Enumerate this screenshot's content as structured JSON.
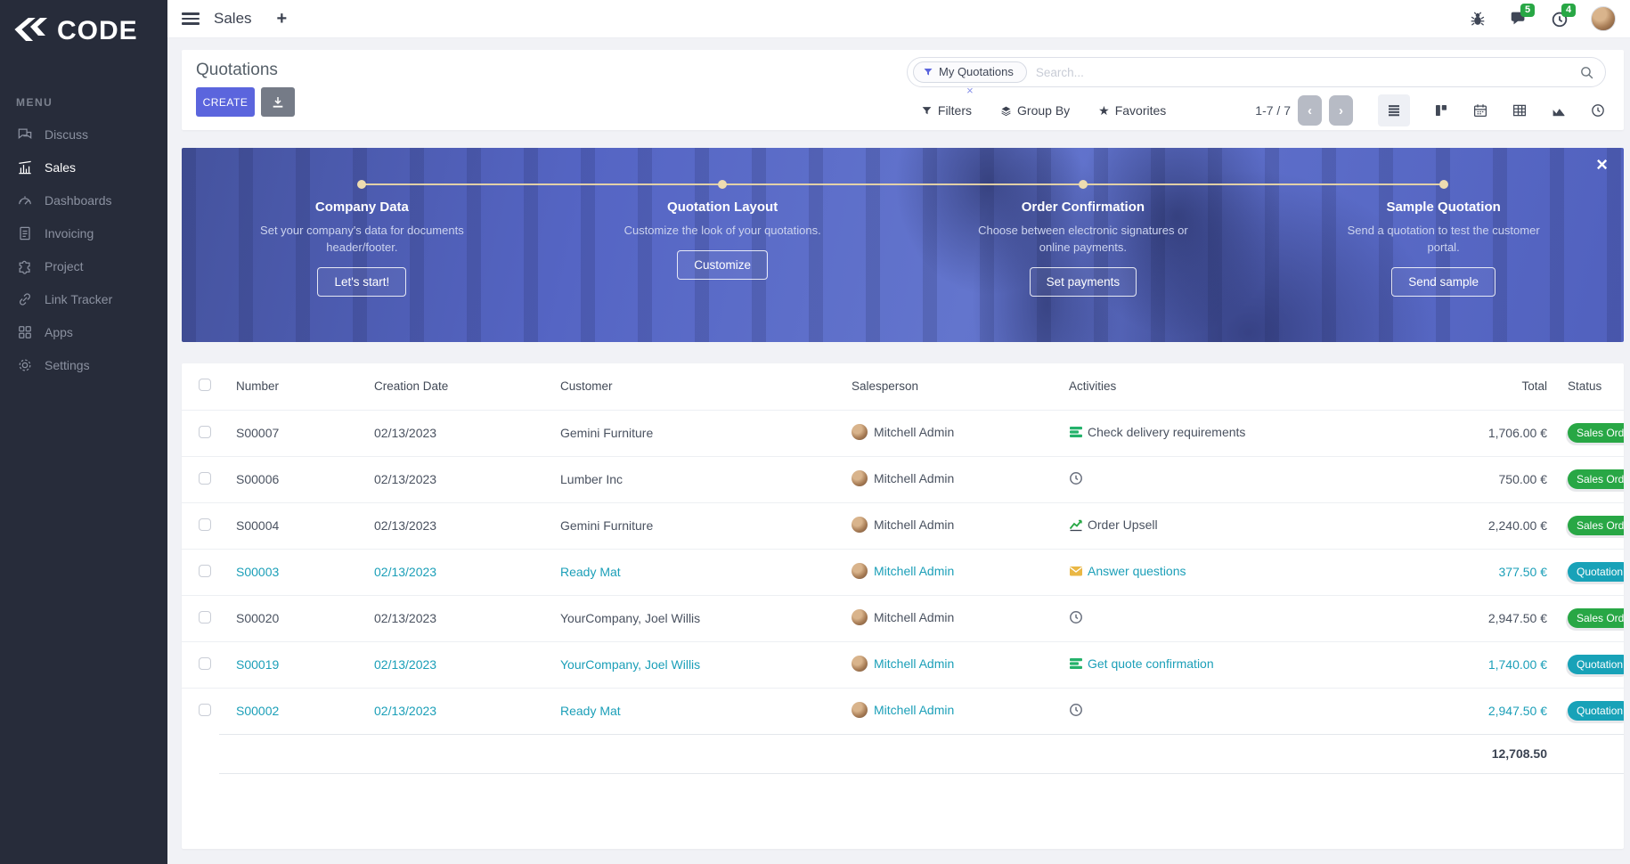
{
  "brand": {
    "name": "CODE"
  },
  "topbar": {
    "title": "Sales",
    "add_label": "+",
    "message_badge": "5",
    "activity_badge": "4"
  },
  "sidebar": {
    "menu_label": "MENU",
    "items": [
      {
        "icon": "discuss-icon",
        "label": "Discuss",
        "active": false
      },
      {
        "icon": "sales-icon",
        "label": "Sales",
        "active": true
      },
      {
        "icon": "dashboards-icon",
        "label": "Dashboards",
        "active": false
      },
      {
        "icon": "invoicing-icon",
        "label": "Invoicing",
        "active": false
      },
      {
        "icon": "project-icon",
        "label": "Project",
        "active": false
      },
      {
        "icon": "link-tracker-icon",
        "label": "Link Tracker",
        "active": false
      },
      {
        "icon": "apps-icon",
        "label": "Apps",
        "active": false
      },
      {
        "icon": "settings-icon",
        "label": "Settings",
        "active": false
      }
    ]
  },
  "page": {
    "title": "Quotations",
    "create_label": "CREATE"
  },
  "search": {
    "facet_label": "My Quotations",
    "facet_remove": "×",
    "placeholder": "Search..."
  },
  "controls": {
    "filters_label": "Filters",
    "group_by_label": "Group By",
    "favorites_label": "Favorites",
    "star_glyph": "★",
    "pager": "1-7 / 7",
    "prev_glyph": "‹",
    "next_glyph": "›"
  },
  "onboarding": {
    "close_glyph": "×",
    "steps": [
      {
        "title": "Company Data",
        "desc": "Set your company's data for documents header/footer.",
        "button": "Let's start!"
      },
      {
        "title": "Quotation Layout",
        "desc": "Customize the look of your quotations.",
        "button": "Customize"
      },
      {
        "title": "Order Confirmation",
        "desc": "Choose between electronic signatures or online payments.",
        "button": "Set payments"
      },
      {
        "title": "Sample Quotation",
        "desc": "Send a quotation to test the customer portal.",
        "button": "Send sample"
      }
    ]
  },
  "table": {
    "headers": [
      "Number",
      "Creation Date",
      "Customer",
      "Salesperson",
      "Activities",
      "Total",
      "Status"
    ],
    "rows": [
      {
        "number": "S00007",
        "date": "02/13/2023",
        "customer": "Gemini Furniture",
        "salesperson": "Mitchell Admin",
        "activity_icon": "tasks-icon",
        "activity_text": "Check delivery requirements",
        "total": "1,706.00 €",
        "status": "Sales Order",
        "status_color": "green",
        "highlighted": false
      },
      {
        "number": "S00006",
        "date": "02/13/2023",
        "customer": "Lumber Inc",
        "salesperson": "Mitchell Admin",
        "activity_icon": "clock-icon",
        "activity_text": "",
        "total": "750.00 €",
        "status": "Sales Order",
        "status_color": "green",
        "highlighted": false
      },
      {
        "number": "S00004",
        "date": "02/13/2023",
        "customer": "Gemini Furniture",
        "salesperson": "Mitchell Admin",
        "activity_icon": "chart-icon",
        "activity_text": "Order Upsell",
        "total": "2,240.00 €",
        "status": "Sales Order",
        "status_color": "green",
        "highlighted": false
      },
      {
        "number": "S00003",
        "date": "02/13/2023",
        "customer": "Ready Mat",
        "salesperson": "Mitchell Admin",
        "activity_icon": "mail-icon",
        "activity_text": "Answer questions",
        "total": "377.50 €",
        "status": "Quotation",
        "status_color": "teal",
        "highlighted": true
      },
      {
        "number": "S00020",
        "date": "02/13/2023",
        "customer": "YourCompany, Joel Willis",
        "salesperson": "Mitchell Admin",
        "activity_icon": "clock-icon",
        "activity_text": "",
        "total": "2,947.50 €",
        "status": "Sales Order",
        "status_color": "green",
        "highlighted": false
      },
      {
        "number": "S00019",
        "date": "02/13/2023",
        "customer": "YourCompany, Joel Willis",
        "salesperson": "Mitchell Admin",
        "activity_icon": "tasks-icon",
        "activity_text": "Get quote confirmation",
        "total": "1,740.00 €",
        "status": "Quotation",
        "status_color": "teal",
        "highlighted": true
      },
      {
        "number": "S00002",
        "date": "02/13/2023",
        "customer": "Ready Mat",
        "salesperson": "Mitchell Admin",
        "activity_icon": "clock-icon",
        "activity_text": "",
        "total": "2,947.50 €",
        "status": "Quotation",
        "status_color": "teal",
        "highlighted": true
      }
    ],
    "footer_total": "12,708.50"
  },
  "colors": {
    "accent": "#5b65dd",
    "sidebar_bg": "#272c3a",
    "badge_green": "#28a745",
    "badge_teal": "#18a2b8",
    "mail_yellow": "#eab744",
    "task_green": "#24b26b",
    "notification_green": "#28a745",
    "banner_dot": "#eedcb0"
  }
}
